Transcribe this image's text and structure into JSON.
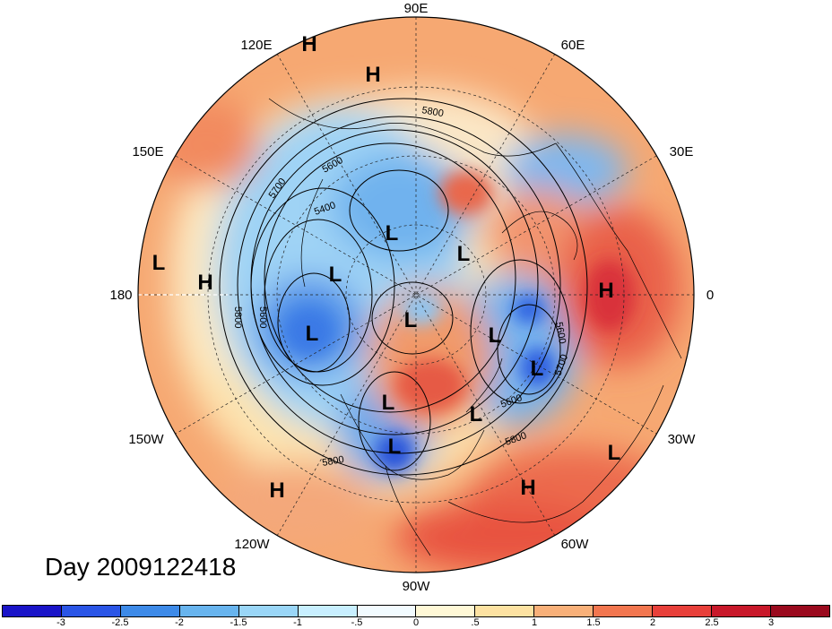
{
  "day_label": "Day 2009122418",
  "longitude_labels": [
    "90E",
    "60E",
    "30E",
    "0",
    "30W",
    "60W",
    "90W",
    "120W",
    "150W",
    "180",
    "150E",
    "120E"
  ],
  "contour_labels": [
    "5800",
    "5600",
    "5700",
    "5400",
    "5800",
    "5600",
    "5600",
    "5700",
    "5600",
    "5800",
    "5800"
  ],
  "pressure_markers": [
    "H",
    "H",
    "L",
    "H",
    "L",
    "L",
    "L",
    "L",
    "H",
    "L",
    "L",
    "L",
    "L",
    "L",
    "L",
    "H",
    "H",
    "L"
  ],
  "colorbar": {
    "ticks": [
      "-3",
      "-2.5",
      "-2",
      "-1.5",
      "-1",
      "-.5",
      "0",
      ".5",
      "1",
      "1.5",
      "2",
      "2.5",
      "3"
    ],
    "colors": [
      "#1a14c8",
      "#2a55e6",
      "#3d8ae8",
      "#68b4ee",
      "#9ad6f7",
      "#c8efff",
      "#f2fbff",
      "#fff8d6",
      "#fde2a2",
      "#f8b079",
      "#f2764f",
      "#e8403a",
      "#c8182a",
      "#9a0a1e"
    ]
  },
  "field_colors": {
    "ocean_warm": "#f4a26c",
    "background_pale": "#fde7b3",
    "cold_core": "#3a7be6",
    "deep_cold": "#2246d8",
    "hot_core": "#e2413c"
  }
}
